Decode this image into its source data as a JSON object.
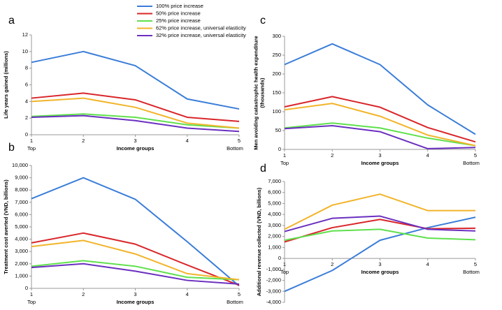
{
  "chart_data": [
    {
      "type": "line",
      "panel": "a",
      "xlabel": "Income groups",
      "ylabel": [
        "Life years gained (millions)"
      ],
      "x": [
        1,
        2,
        3,
        4,
        5
      ],
      "xlim": [
        1,
        5
      ],
      "xticks": [
        1,
        2,
        3,
        4,
        5
      ],
      "x_end_labels": [
        "Top",
        "Bottom"
      ],
      "ylim": [
        0,
        12
      ],
      "yticks": [
        0,
        2,
        4,
        6,
        8,
        10,
        12
      ],
      "series": [
        {
          "name": "100% price increase",
          "color": "#3a7dd8",
          "values": [
            8.7,
            10.0,
            8.3,
            4.3,
            3.1
          ]
        },
        {
          "name": "50% price increase",
          "color": "#d9262a",
          "values": [
            4.4,
            5.0,
            4.2,
            2.1,
            1.6
          ]
        },
        {
          "name": "25% price increase",
          "color": "#5fe04c",
          "values": [
            2.2,
            2.5,
            2.1,
            1.2,
            0.8
          ]
        },
        {
          "name": "62% price increase, universal elasticity",
          "color": "#f2b42a",
          "values": [
            4.0,
            4.4,
            3.3,
            1.4,
            0.8
          ]
        },
        {
          "name": "32% price increase, universal elasticity",
          "color": "#6a2fc0",
          "values": [
            2.1,
            2.3,
            1.7,
            0.8,
            0.4
          ]
        }
      ]
    },
    {
      "type": "line",
      "panel": "b",
      "xlabel": "Income groups",
      "ylabel": [
        "Treatment cost averted (VND, billions)"
      ],
      "x": [
        1,
        2,
        3,
        4,
        5
      ],
      "xlim": [
        1,
        5
      ],
      "xticks": [
        1,
        2,
        3,
        4,
        5
      ],
      "x_end_labels": [
        "Top",
        "Bottom"
      ],
      "ylim": [
        0,
        10000
      ],
      "yticks": [
        0,
        {
          "value": 1000,
          "label": "1,000"
        },
        {
          "value": 2000,
          "label": "2,000"
        },
        {
          "value": 3000,
          "label": "3,000"
        },
        {
          "value": 4000,
          "label": "4,000"
        },
        {
          "value": 5000,
          "label": "5,000"
        },
        {
          "value": 6000,
          "label": "6,000"
        },
        {
          "value": 7000,
          "label": "7,000"
        },
        {
          "value": 8000,
          "label": "8,000"
        },
        {
          "value": 9000,
          "label": "9,000"
        },
        {
          "value": 10000,
          "label": "10,000"
        }
      ],
      "series": [
        {
          "name": "100% price increase",
          "color": "#3a7dd8",
          "values": [
            7300,
            9000,
            7250,
            3800,
            200
          ]
        },
        {
          "name": "50% price increase",
          "color": "#d9262a",
          "values": [
            3700,
            4500,
            3600,
            1900,
            250
          ]
        },
        {
          "name": "25% price increase",
          "color": "#5fe04c",
          "values": [
            1800,
            2250,
            1800,
            900,
            700
          ]
        },
        {
          "name": "62% price increase, universal elasticity",
          "color": "#f2b42a",
          "values": [
            3400,
            3900,
            2800,
            1200,
            700
          ]
        },
        {
          "name": "32% price increase, universal elasticity",
          "color": "#6a2fc0",
          "values": [
            1700,
            2000,
            1400,
            650,
            350
          ]
        }
      ]
    },
    {
      "type": "line",
      "panel": "c",
      "xlabel": "Income groups",
      "ylabel": [
        "Men avoiding catastrophic health expenditure",
        "(thousands)"
      ],
      "x": [
        1,
        2,
        3,
        4,
        5
      ],
      "xlim": [
        1,
        5
      ],
      "xticks": [
        1,
        2,
        3,
        4,
        5
      ],
      "x_end_labels": [
        "Top",
        "Bottom"
      ],
      "ylim": [
        0,
        300
      ],
      "yticks": [
        0,
        50,
        100,
        150,
        200,
        250,
        300
      ],
      "series": [
        {
          "name": "100% price increase",
          "color": "#3a7dd8",
          "values": [
            225,
            280,
            225,
            118,
            40
          ]
        },
        {
          "name": "50% price increase",
          "color": "#d9262a",
          "values": [
            113,
            140,
            112,
            58,
            20
          ]
        },
        {
          "name": "25% price increase",
          "color": "#5fe04c",
          "values": [
            57,
            70,
            57,
            30,
            10
          ]
        },
        {
          "name": "62% price increase, universal elasticity",
          "color": "#f2b42a",
          "values": [
            105,
            122,
            88,
            38,
            10
          ]
        },
        {
          "name": "32% price increase, universal elasticity",
          "color": "#6a2fc0",
          "values": [
            55,
            63,
            47,
            2,
            5
          ]
        }
      ]
    },
    {
      "type": "line",
      "panel": "d",
      "xlabel": "Income groups",
      "ylabel": [
        "Additional revenue collected (VND, billions)"
      ],
      "x": [
        1,
        2,
        3,
        4,
        5
      ],
      "xlim": [
        1,
        5
      ],
      "xticks": [
        1,
        2,
        3,
        4,
        5
      ],
      "x_end_labels": [
        "Top",
        "Bottom"
      ],
      "ylim": [
        -4000,
        7000
      ],
      "yticks": [
        {
          "value": -4000,
          "label": "-4,000"
        },
        {
          "value": -3000,
          "label": "-3,000"
        },
        {
          "value": -2000,
          "label": "-2,000"
        },
        {
          "value": -1000,
          "label": "-1,000"
        },
        0,
        {
          "value": 1000,
          "label": "1,000"
        },
        {
          "value": 2000,
          "label": "2,000"
        },
        {
          "value": 3000,
          "label": "3,000"
        },
        {
          "value": 4000,
          "label": "4,000"
        },
        {
          "value": 5000,
          "label": "5,000"
        },
        {
          "value": 6000,
          "label": "6,000"
        },
        {
          "value": 7000,
          "label": "7,000"
        }
      ],
      "series": [
        {
          "name": "100% price increase",
          "color": "#3a7dd8",
          "values": [
            -3000,
            -1100,
            1650,
            2800,
            3750
          ]
        },
        {
          "name": "50% price increase",
          "color": "#d9262a",
          "values": [
            1500,
            2800,
            3550,
            2700,
            2750
          ]
        },
        {
          "name": "25% price increase",
          "color": "#5fe04c",
          "values": [
            1650,
            2500,
            2650,
            1850,
            1700
          ]
        },
        {
          "name": "62% price increase, universal elasticity",
          "color": "#f2b42a",
          "values": [
            2650,
            4850,
            5850,
            4350,
            4350
          ]
        },
        {
          "name": "32% price increase, universal elasticity",
          "color": "#6a2fc0",
          "values": [
            2450,
            3650,
            3850,
            2650,
            2500
          ]
        }
      ]
    }
  ]
}
